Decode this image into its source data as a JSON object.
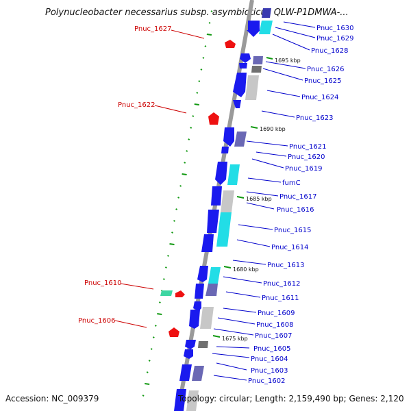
{
  "title": "Polynucleobacter necessarius subsp. asymbioticus QLW-P1DMWA-...",
  "accession": "Accession: NC_009379",
  "summary": "Topology: circular; Length: 2,159,490 bp; Genes: 2,120",
  "colors": {
    "cds_forward": "#1a1aee",
    "cds_forward_dark": "#0000cc",
    "cyan": "#22dde6",
    "gray": "#c7c7c7",
    "slate": "#6a68b4",
    "red": "#ee1111",
    "green_dot": "#119911",
    "blue_label": "#0000cc",
    "red_label": "#cc0000"
  },
  "kbp_marks": [
    {
      "label": "1695 kbp",
      "kbp": 1695
    },
    {
      "label": "1690 kbp",
      "kbp": 1690
    },
    {
      "label": "1685 kbp",
      "kbp": 1685
    },
    {
      "label": "1680 kbp",
      "kbp": 1680
    },
    {
      "label": "1675 kbp",
      "kbp": 1675
    }
  ],
  "genes_right": [
    {
      "label": "Pnuc_1630"
    },
    {
      "label": "Pnuc_1629"
    },
    {
      "label": "Pnuc_1628"
    },
    {
      "label": "Pnuc_1626"
    },
    {
      "label": "Pnuc_1625"
    },
    {
      "label": "Pnuc_1624"
    },
    {
      "label": "Pnuc_1623"
    },
    {
      "label": "Pnuc_1621"
    },
    {
      "label": "Pnuc_1620"
    },
    {
      "label": "Pnuc_1619"
    },
    {
      "label": "fumC"
    },
    {
      "label": "Pnuc_1617"
    },
    {
      "label": "Pnuc_1616"
    },
    {
      "label": "Pnuc_1615"
    },
    {
      "label": "Pnuc_1614"
    },
    {
      "label": "Pnuc_1613"
    },
    {
      "label": "Pnuc_1612"
    },
    {
      "label": "Pnuc_1611"
    },
    {
      "label": "Pnuc_1609"
    },
    {
      "label": "Pnuc_1608"
    },
    {
      "label": "Pnuc_1607"
    },
    {
      "label": "Pnuc_1605"
    },
    {
      "label": "Pnuc_1604"
    },
    {
      "label": "Pnuc_1603"
    },
    {
      "label": "Pnuc_1602"
    }
  ],
  "genes_left": [
    {
      "label": "Pnuc_1627"
    },
    {
      "label": "Pnuc_1622"
    },
    {
      "label": "Pnuc_1610"
    },
    {
      "label": "Pnuc_1606"
    }
  ]
}
